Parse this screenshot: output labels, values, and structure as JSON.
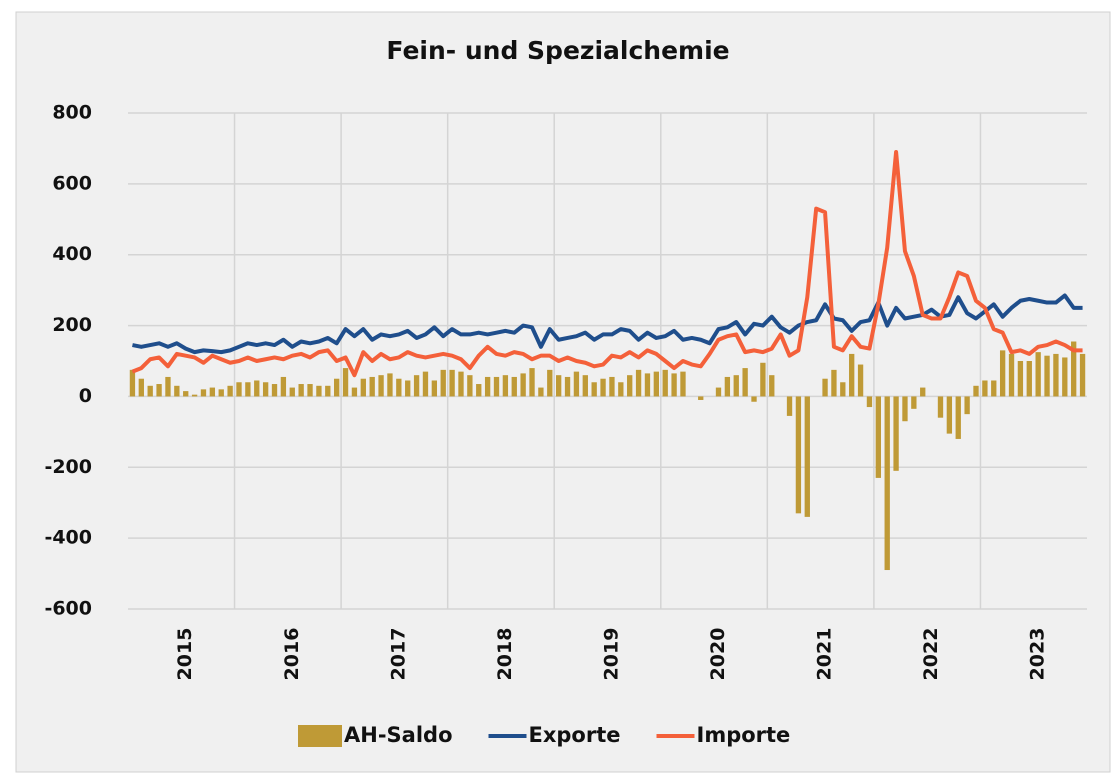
{
  "chart_data": {
    "type": "combo",
    "title": "Fein- und Spezialchemie",
    "categories": [
      null,
      null,
      null,
      null,
      null,
      null,
      "2015",
      null,
      null,
      null,
      null,
      null,
      null,
      null,
      null,
      null,
      null,
      null,
      "2016",
      null,
      null,
      null,
      null,
      null,
      null,
      null,
      null,
      null,
      null,
      null,
      "2017",
      null,
      null,
      null,
      null,
      null,
      null,
      null,
      null,
      null,
      null,
      null,
      "2018",
      null,
      null,
      null,
      null,
      null,
      null,
      null,
      null,
      null,
      null,
      null,
      "2019",
      null,
      null,
      null,
      null,
      null,
      null,
      null,
      null,
      null,
      null,
      null,
      "2020",
      null,
      null,
      null,
      null,
      null,
      null,
      null,
      null,
      null,
      null,
      null,
      "2021",
      null,
      null,
      null,
      null,
      null,
      null,
      null,
      null,
      null,
      null,
      null,
      "2022",
      null,
      null,
      null,
      null,
      null,
      null,
      null,
      null,
      null,
      null,
      null,
      "2023",
      null,
      null,
      null,
      null,
      null
    ],
    "series": [
      {
        "name": "AH-Saldo",
        "type": "bar",
        "color": "#bf9a36",
        "values": [
          75,
          50,
          30,
          35,
          55,
          30,
          15,
          5,
          20,
          25,
          20,
          30,
          40,
          40,
          45,
          40,
          35,
          55,
          25,
          35,
          35,
          30,
          30,
          50,
          80,
          25,
          50,
          55,
          60,
          65,
          50,
          45,
          60,
          70,
          45,
          75,
          75,
          70,
          60,
          35,
          55,
          55,
          60,
          55,
          65,
          80,
          25,
          75,
          60,
          55,
          70,
          60,
          40,
          50,
          55,
          40,
          60,
          75,
          65,
          70,
          75,
          65,
          70,
          0,
          -10,
          0,
          25,
          55,
          60,
          80,
          -15,
          95,
          60,
          0,
          -55,
          -330,
          -340,
          0,
          50,
          75,
          40,
          120,
          90,
          -30,
          -230,
          -490,
          -210,
          -70,
          -35,
          25,
          0,
          -60,
          -105,
          -120,
          -50,
          30,
          45,
          45,
          130,
          120,
          100,
          100,
          125,
          115,
          120,
          110,
          155,
          120
        ]
      },
      {
        "name": "Exporte",
        "type": "line",
        "color": "#1f4e8c",
        "values": [
          145,
          140,
          145,
          150,
          140,
          150,
          135,
          125,
          130,
          128,
          125,
          130,
          140,
          150,
          145,
          150,
          145,
          160,
          140,
          155,
          150,
          155,
          165,
          150,
          190,
          170,
          190,
          160,
          175,
          170,
          175,
          185,
          165,
          175,
          195,
          170,
          190,
          175,
          175,
          180,
          175,
          180,
          185,
          180,
          200,
          195,
          140,
          190,
          160,
          165,
          170,
          180,
          160,
          175,
          175,
          190,
          185,
          160,
          180,
          165,
          170,
          185,
          160,
          165,
          160,
          150,
          190,
          195,
          210,
          175,
          205,
          200,
          225,
          195,
          180,
          200,
          210,
          215,
          260,
          220,
          215,
          185,
          210,
          215,
          265,
          200,
          250,
          220,
          225,
          230,
          245,
          225,
          230,
          280,
          235,
          220,
          240,
          260,
          225,
          250,
          270,
          275,
          270,
          265,
          265,
          285,
          250,
          250
        ]
      },
      {
        "name": "Importe",
        "type": "line",
        "color": "#f4603a",
        "values": [
          70,
          80,
          105,
          110,
          85,
          120,
          115,
          110,
          95,
          115,
          105,
          95,
          100,
          110,
          100,
          105,
          110,
          105,
          115,
          120,
          110,
          125,
          130,
          100,
          110,
          60,
          125,
          100,
          120,
          105,
          110,
          125,
          115,
          110,
          115,
          120,
          115,
          105,
          80,
          115,
          140,
          120,
          115,
          125,
          120,
          105,
          115,
          115,
          100,
          110,
          100,
          95,
          85,
          90,
          115,
          110,
          125,
          110,
          130,
          120,
          100,
          80,
          100,
          90,
          85,
          120,
          160,
          170,
          175,
          125,
          130,
          125,
          135,
          175,
          115,
          130,
          280,
          530,
          520,
          140,
          130,
          170,
          140,
          135,
          260,
          420,
          690,
          410,
          340,
          230,
          220,
          220,
          280,
          350,
          340,
          270,
          250,
          190,
          180,
          125,
          130,
          120,
          140,
          145,
          155,
          145,
          130,
          130
        ]
      }
    ],
    "ylim": [
      -600,
      800
    ],
    "yticks": [
      -600,
      -400,
      -200,
      0,
      200,
      400,
      600,
      800
    ],
    "grid": true,
    "legend": "bottom"
  }
}
